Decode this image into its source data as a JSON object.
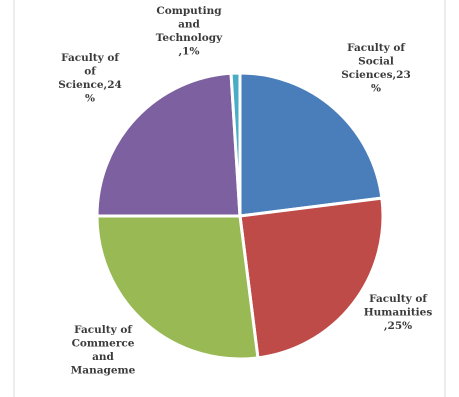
{
  "chart_data": {
    "type": "pie",
    "slices": [
      {
        "label_lines": [
          "Faculty of",
          "Social",
          "Sciences,23",
          "%"
        ],
        "value": 23,
        "color": "#4a7ebb"
      },
      {
        "label_lines": [
          "Faculty of",
          "Humanities",
          ",25%"
        ],
        "value": 25,
        "color": "#be4b48"
      },
      {
        "label_lines": [
          "Faculty of",
          "Commerce",
          "and",
          "Manageme"
        ],
        "value": 27,
        "color": "#98b954"
      },
      {
        "label_lines": [
          "Faculty of",
          "of",
          "Science,24",
          "%"
        ],
        "value": 24,
        "color": "#7d60a0"
      },
      {
        "label_lines": [
          "Computing",
          "and",
          "Technology",
          ",1%"
        ],
        "value": 1,
        "color": "#4bacc6"
      }
    ],
    "start_angle_deg": 0,
    "direction": "clockwise",
    "legend": "none"
  }
}
